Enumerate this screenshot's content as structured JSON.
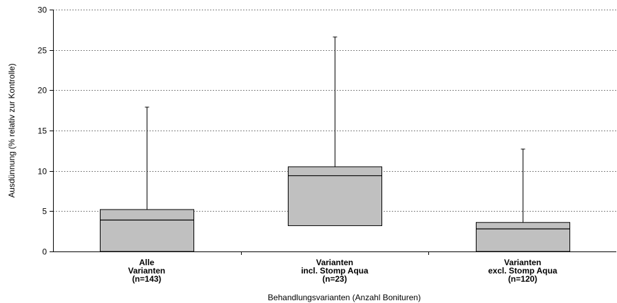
{
  "chart_data": {
    "type": "boxplot",
    "title": "",
    "xlabel": "Behandlungsvarianten (Anzahl Bonituren)",
    "ylabel": "Ausdünnung (% relativ zur Kontrolle)",
    "ylim": [
      0,
      30
    ],
    "yticks": [
      0,
      5,
      10,
      15,
      20,
      25,
      30
    ],
    "grid": "horizontal dashed",
    "box_color": "#c0c0c0",
    "categories": [
      {
        "lines": [
          "Alle",
          "Varianten",
          "(n=143)"
        ]
      },
      {
        "lines": [
          "Varianten",
          "incl. Stomp Aqua",
          "(n=23)"
        ]
      },
      {
        "lines": [
          "Varianten",
          "excl. Stomp Aqua",
          "(n=120)"
        ]
      }
    ],
    "boxes": [
      {
        "whisker_low": 0,
        "q1": 0,
        "median": 3.9,
        "q3": 5.2,
        "whisker_high": 17.9
      },
      {
        "whisker_low": 3.2,
        "q1": 3.2,
        "median": 9.4,
        "q3": 10.5,
        "whisker_high": 26.6
      },
      {
        "whisker_low": 0,
        "q1": 0,
        "median": 2.8,
        "q3": 3.6,
        "whisker_high": 12.7
      }
    ]
  }
}
